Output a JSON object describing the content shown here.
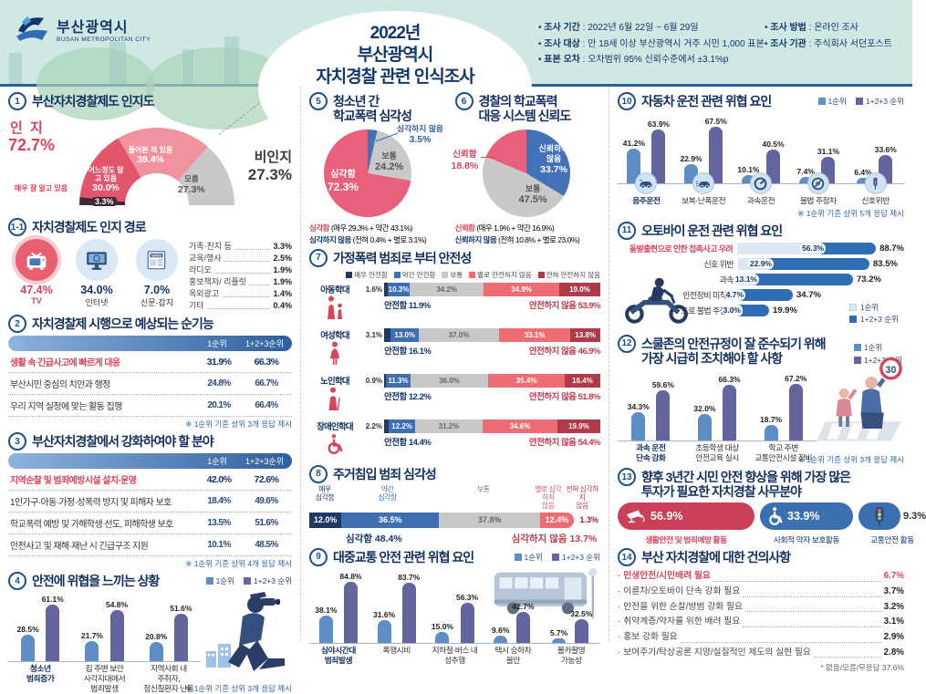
{
  "header": {
    "logo_title": "부산광역시",
    "logo_subtitle": "BUSAN METROPOLITAN CITY",
    "title_line1": "2022년",
    "title_line2": "부산광역시",
    "title_line3": "자치경찰 관련 인식조사",
    "info_left": [
      {
        "label": "조사 기간",
        "value": "2022년 6월 22일 ~ 6월 29일"
      },
      {
        "label": "조사 대상",
        "value": "만 18세 이상 부산광역시 거주 시민 1,000 표본"
      },
      {
        "label": "표본 오차",
        "value": "오차범위 95% 신뢰수준에서 ±3.1%p"
      }
    ],
    "info_right": [
      {
        "label": "조사 방법",
        "value": "온라인 조사"
      },
      {
        "label": "조사 기관",
        "value": "주식회사 서던포스트"
      }
    ]
  },
  "legend_labels": {
    "rank1": "1순위",
    "rank123": "1+2+3 순위",
    "rank123_tbl": "1+2+3순위"
  },
  "chart_data": [
    {
      "id": "awareness",
      "no": "1",
      "type": "pie",
      "title": "부산자치경찰제도 인지도",
      "segments": [
        {
          "label": "매우 잘 알고 있음",
          "value": 3.3,
          "color": "#3b2a35"
        },
        {
          "label": "어느정도 알고 있음",
          "value": 30.0,
          "color": "#e2556b"
        },
        {
          "label": "들어본 적 있음",
          "value": 39.4,
          "color": "#f0939f"
        },
        {
          "label": "모름",
          "value": 27.3,
          "color": "#c9c9c9"
        }
      ],
      "aware_label": "인 지",
      "aware_value": "72.7%",
      "unaware_label": "비인지",
      "unaware_value": "27.3%"
    },
    {
      "id": "channels",
      "no": "1-1",
      "type": "icon-stats",
      "title": "자치경찰제도 인지 경로",
      "top": [
        {
          "label": "TV",
          "value": 47.4,
          "icon": "tv-icon",
          "highlight": true
        },
        {
          "label": "인터넷",
          "value": 34.0,
          "icon": "monitor-icon"
        },
        {
          "label": "신문·잡지",
          "value": 7.0,
          "icon": "newspaper-icon"
        }
      ],
      "others": [
        {
          "label": "가족·친지 등",
          "value": 3.3
        },
        {
          "label": "교육/행사",
          "value": 2.5
        },
        {
          "label": "라디오",
          "value": 1.9
        },
        {
          "label": "홍보책자/ 리플릿",
          "value": 1.9
        },
        {
          "label": "옥외광고",
          "value": 1.4
        },
        {
          "label": "기타",
          "value": 0.4
        }
      ]
    },
    {
      "id": "positive-functions",
      "no": "2",
      "type": "table",
      "title": "자치경찰제 시행으로 예상되는 순기능",
      "columns": [
        "1순위",
        "1+2+3순위"
      ],
      "rows": [
        {
          "label": "생활 속 긴급사고에 빠르게 대응",
          "v1": 31.9,
          "v2": 66.3,
          "highlight": true
        },
        {
          "label": "부산시민 중심의 치안과 행정",
          "v1": 24.8,
          "v2": 66.7
        },
        {
          "label": "우리 지역 실정에 맞는 활동 집행",
          "v1": 20.1,
          "v2": 66.4
        }
      ],
      "note": "※ 1순위 기준 상위 3개 응답 제시"
    },
    {
      "id": "strengthen-fields",
      "no": "3",
      "type": "table",
      "title": "부산자치경찰에서 강화하여야 할 분야",
      "columns": [
        "1순위",
        "1+2+3순위"
      ],
      "rows": [
        {
          "label": "지역순찰 및 범죄예방시설 설치·운영",
          "v1": 42.0,
          "v2": 72.6,
          "highlight": true
        },
        {
          "label": "1인가구·아동·가정·성폭력 방지 및 피해자 보호",
          "v1": 18.4,
          "v2": 49.6
        },
        {
          "label": "학교폭력 예방 및 가해학생 선도, 피해학생 보호",
          "v1": 13.5,
          "v2": 51.6
        },
        {
          "label": "안전사고 및 재해·재난 시 긴급구조 지원",
          "v1": 10.1,
          "v2": 48.5
        }
      ],
      "note": "※ 1순위 기준 상위 4개 응답 제시"
    },
    {
      "id": "threat-situations",
      "no": "4",
      "type": "bar",
      "title": "안전에 위협을 느끼는 상황",
      "categories": [
        [
          "청소년",
          "범죄증가"
        ],
        [
          "집 주변 보안",
          "사각지대에서",
          "범죄발생"
        ],
        [
          "지역사회 내",
          "주취자,",
          "정신질환자 난동"
        ]
      ],
      "series": [
        {
          "name": "1순위",
          "values": [
            28.5,
            21.7,
            20.8
          ]
        },
        {
          "name": "1+2+3 순위",
          "values": [
            61.1,
            54.8,
            51.6
          ]
        }
      ],
      "note": "※ 1순위 기준 상위 3개 응답 제시"
    },
    {
      "id": "school-violence",
      "no": "5",
      "type": "pie",
      "title_lines": [
        "청소년 간",
        "학교폭력 심각성"
      ],
      "slices": [
        {
          "label": "심각하지 않음",
          "value": 3.5,
          "color": "#4472b8"
        },
        {
          "label": "보통",
          "value": 24.2,
          "color": "#c9c9c9"
        },
        {
          "label": "심각함",
          "value": 72.3,
          "color": "#e8607a"
        }
      ],
      "footnotes": [
        {
          "text": "심각함 (매우 29.3% + 약간 43.1%)",
          "tone": "r"
        },
        {
          "text": "심각하지 않음 (전혀 0.4% + 별로 3.1%)",
          "tone": "n"
        }
      ]
    },
    {
      "id": "police-trust",
      "no": "6",
      "type": "pie",
      "title_lines": [
        "경찰의 학교폭력",
        "대응 시스템 신뢰도"
      ],
      "slices": [
        {
          "label": "신뢰하지 않음",
          "value": 33.7,
          "color": "#4472b8"
        },
        {
          "label": "보통",
          "value": 47.5,
          "color": "#c9c9c9"
        },
        {
          "label": "신뢰함",
          "value": 18.8,
          "color": "#e8607a"
        }
      ],
      "footnotes": [
        {
          "text": "신뢰함 (매우 1.9% + 약간 16.9%)",
          "tone": "r"
        },
        {
          "text": "신뢰하지 않음 (전혀 10.8% + 별로 23.0%)",
          "tone": "n"
        }
      ]
    },
    {
      "id": "domestic-violence-safety",
      "no": "7",
      "type": "stacked",
      "title": "가정폭력 범죄로 부터 안전성",
      "legend": [
        "매우 안전함",
        "약간 안전함",
        "보통",
        "별로 안전하지 않음",
        "전혀 안전하지 않음"
      ],
      "colors": [
        "#1f3864",
        "#3f6fb0",
        "#c8c8c8",
        "#ee6d72",
        "#b03a4a"
      ],
      "rows": [
        {
          "label": "아동학대",
          "icon": "child-abuse-icon",
          "values": [
            1.6,
            10.3,
            34.2,
            34.9,
            19.0
          ],
          "safe": "안전함 11.9%",
          "unsafe": "안전하지 않음 53.9%"
        },
        {
          "label": "여성학대",
          "icon": "woman-icon",
          "values": [
            3.1,
            13.0,
            37.0,
            33.1,
            13.8
          ],
          "safe": "안전함 16.1%",
          "unsafe": "안전하지 않음 46.9%"
        },
        {
          "label": "노인학대",
          "icon": "elder-icon",
          "values": [
            0.9,
            11.3,
            36.0,
            35.4,
            16.4
          ],
          "safe": "안전함 12.2%",
          "unsafe": "안전하지 않음 51.8%"
        },
        {
          "label": "장애인학대",
          "icon": "wheelchair-icon",
          "values": [
            2.2,
            12.2,
            31.2,
            34.6,
            19.9
          ],
          "safe": "안전함 14.4%",
          "unsafe": "안전하지 않음 54.4%"
        }
      ]
    },
    {
      "id": "housebreaking",
      "no": "8",
      "type": "stacked-single",
      "title": "주거침입 범죄 심각성",
      "labels": [
        [
          "매우",
          "심각함"
        ],
        [
          "약간",
          "심각함"
        ],
        [
          "보통"
        ],
        [
          "별로 심각하지",
          "않음"
        ],
        [
          "전혀 심각하지",
          "않음"
        ]
      ],
      "label_colors": [
        "#1f3864",
        "#3f6fb0",
        "#777777",
        "#d85c66",
        "#a8414e"
      ],
      "colors": [
        "#1f3864",
        "#3f6fb0",
        "#c8c8c8",
        "#ee6d72"
      ],
      "values": [
        12.0,
        36.5,
        37.8,
        12.4,
        1.3
      ],
      "summary_left": "심각함 48.4%",
      "summary_right": "심각하지 않음 13.7%"
    },
    {
      "id": "transit-threats",
      "no": "9",
      "type": "bar",
      "title": "대중교통 안전 관련 위협 요인",
      "categories": [
        [
          "심야시간대",
          "범죄발생"
        ],
        [
          "폭행시비"
        ],
        [
          "지하철·버스 내",
          "성추행"
        ],
        [
          "택시 승하차",
          "불안"
        ],
        [
          "몰카촬영",
          "가능성"
        ]
      ],
      "series": [
        {
          "name": "1순위",
          "values": [
            38.1,
            31.6,
            15.0,
            9.6,
            5.7
          ]
        },
        {
          "name": "1+2+3 순위",
          "values": [
            84.8,
            83.7,
            56.3,
            42.7,
            32.5
          ]
        }
      ]
    },
    {
      "id": "driving-threats",
      "no": "10",
      "type": "bar",
      "title": "자동차 운전 관련 위협 요인",
      "categories": [
        [
          "음주운전"
        ],
        [
          "보복·난폭운전"
        ],
        [
          "과속운전"
        ],
        [
          "불법 주정차"
        ],
        [
          "신호위반"
        ]
      ],
      "icons": [
        "drunk-driving-icon",
        "reckless-driving-icon",
        "speeding-icon",
        "illegal-parking-icon",
        "signal-violation-icon"
      ],
      "series": [
        {
          "name": "1순위",
          "values": [
            41.2,
            22.9,
            10.1,
            7.4,
            6.4
          ]
        },
        {
          "name": "1+2+3 순위",
          "values": [
            63.9,
            67.5,
            40.5,
            31.1,
            33.6
          ]
        }
      ],
      "note": "※ 1순위 기준 상위 5개 응답 제시"
    },
    {
      "id": "motorcycle-threats",
      "no": "11",
      "type": "hbar",
      "title": "오토바이 운전 관련 위협 요인",
      "rows": [
        {
          "label": "돌발출현으로 인한 접촉사고 우려",
          "v1": 56.3,
          "v2": 88.7,
          "highlight": true
        },
        {
          "label": "신호 위반",
          "v1": 22.9,
          "v2": 83.5
        },
        {
          "label": "과속",
          "v1": 13.1,
          "v2": 73.2
        },
        {
          "label": "안전장비 미착용",
          "v1": 4.7,
          "v2": 34.7
        },
        {
          "label": "도로 불법 주정차",
          "v1": 3.0,
          "v2": 19.9
        }
      ]
    },
    {
      "id": "school-zone",
      "no": "12",
      "type": "bar",
      "title_lines": [
        "스쿨존의 안전규정이 잘 준수되기 위해",
        "가장 시급히 조치해야 할 사항"
      ],
      "categories": [
        [
          "과속 운전",
          "단속 강화"
        ],
        [
          "초등학생 대상",
          "안전교육 실시"
        ],
        [
          "학교 주변",
          "교통안전시설 정비"
        ]
      ],
      "series": [
        {
          "name": "1순위",
          "values": [
            34.3,
            32.0,
            18.7
          ]
        },
        {
          "name": "1+2+3 순위",
          "values": [
            59.6,
            66.3,
            67.2
          ]
        }
      ],
      "note": "※ 1순위 기준 상위 3개 응답 제시",
      "sign_text": "30"
    },
    {
      "id": "investment-fields",
      "no": "13",
      "type": "pills",
      "title_lines": [
        "향후 3년간 시민 안전 향상을 위해 가장 많은",
        "투자가 필요한 자치경찰 사무분야"
      ],
      "items": [
        {
          "label": "생활안전 및 범죄예방 활동",
          "value": 56.9,
          "icon": "cctv-icon",
          "color": "#c94057",
          "highlight": true
        },
        {
          "label": "사회적 약자 보호활동",
          "value": 33.9,
          "icon": "wheelchair-icon",
          "color": "#3a6fb0"
        },
        {
          "label": "교통안전 활동",
          "value": 9.3,
          "icon": "traffic-light-icon",
          "color": "#3a6fb0",
          "value_outside": true
        }
      ]
    },
    {
      "id": "suggestions",
      "no": "14",
      "type": "list",
      "title": "부산 자치경찰에 대한 건의사항",
      "rows": [
        {
          "label": "민생안전/시민배려 필요",
          "value": 6.7,
          "highlight": true
        },
        {
          "label": "이륜차/오토바이 단속 강화 필요",
          "value": 3.7
        },
        {
          "label": "안전을 위한 순찰/방범 강화 필요",
          "value": 3.2
        },
        {
          "label": "취약계층/약자를 위한 배려 필요",
          "value": 3.1
        },
        {
          "label": "홍보 강화 필요",
          "value": 2.9
        },
        {
          "label": "보여주기/탁상공론 지양/실질적인 제도의 실현 필요",
          "value": 2.8
        }
      ],
      "note": "* 없음/모름/무응답 37.6%"
    }
  ]
}
